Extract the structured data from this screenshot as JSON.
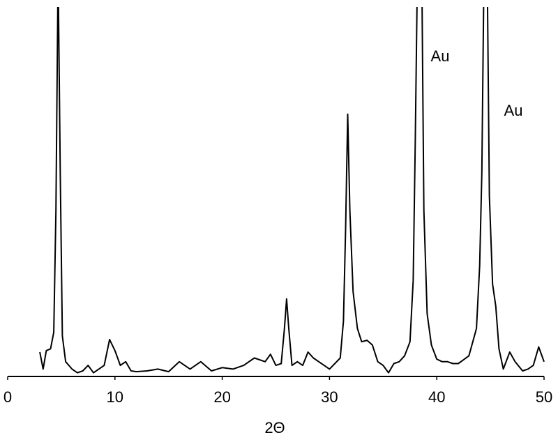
{
  "chart_data": {
    "type": "line",
    "x_label": "2Θ",
    "annotations": [
      "Au",
      "Au"
    ],
    "color": "#000000",
    "xlim": [
      0,
      50
    ],
    "xticks": [
      0,
      10,
      20,
      30,
      40,
      50
    ],
    "ylim": [
      0,
      100
    ],
    "x": [
      3,
      3.3,
      3.6,
      4,
      4.3,
      4.5,
      4.7,
      4.9,
      5.1,
      5.4,
      6,
      6.5,
      7,
      7.5,
      8,
      8.5,
      9,
      9.5,
      10,
      10.5,
      11,
      11.5,
      12,
      13,
      14,
      15,
      16,
      17,
      18,
      19,
      20,
      21,
      22,
      23,
      24,
      24.5,
      25,
      25.5,
      25.8,
      26,
      26.2,
      26.5,
      27,
      27.5,
      28,
      28.5,
      29,
      30,
      31,
      31.3,
      31.5,
      31.7,
      31.9,
      32.2,
      32.6,
      33,
      33.5,
      34,
      34.5,
      35,
      35.5,
      36,
      36.5,
      37,
      37.5,
      37.8,
      38,
      38.2,
      38.6,
      38.8,
      39.1,
      39.5,
      40,
      40.5,
      41,
      41.5,
      42,
      42.5,
      43,
      43.7,
      44,
      44.2,
      44.4,
      44.7,
      44.9,
      45.2,
      45.5,
      45.8,
      46.2,
      46.8,
      47.3,
      48,
      48.5,
      49,
      49.5,
      50
    ],
    "values": [
      6.6,
      2,
      7,
      7.5,
      12,
      45,
      110,
      55,
      11,
      4,
      2,
      1,
      1.5,
      3,
      1,
      2,
      3,
      10,
      7,
      3,
      4,
      1.5,
      1.3,
      1.5,
      2,
      1.3,
      4,
      2,
      4,
      1.5,
      2.4,
      2,
      3,
      5,
      4,
      6,
      3,
      3.5,
      13,
      21,
      13,
      3,
      4,
      3,
      6.6,
      5,
      4,
      2,
      5,
      15,
      40,
      71,
      45,
      23,
      13,
      9.4,
      9.8,
      8.5,
      4,
      3,
      1,
      3.5,
      4,
      5.6,
      9.4,
      26,
      64,
      110,
      110,
      45,
      17,
      8.5,
      4.7,
      4,
      4,
      3.5,
      3.5,
      4.5,
      5.6,
      13,
      30,
      55,
      110,
      110,
      49,
      25,
      19,
      7.5,
      2,
      6.6,
      4,
      1.5,
      2,
      3,
      8,
      4
    ]
  }
}
